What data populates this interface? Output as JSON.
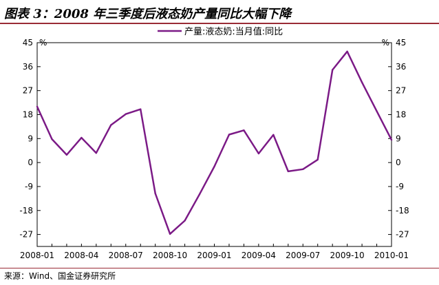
{
  "title": "图表 3：2008 年三季度后液态奶产量同比大幅下降",
  "source": "来源：Wind、国金证券研究所",
  "chart_data": {
    "type": "line",
    "title": "",
    "y_unit_left": "%",
    "y_unit_right": "%",
    "ylim": [
      -31.5,
      45
    ],
    "yticks": [
      45,
      36,
      27,
      18,
      9,
      0,
      -9,
      -18,
      -27
    ],
    "ytick_labels": [
      "45",
      "36",
      "27",
      "18",
      "9",
      "0",
      "-9",
      "-18",
      "-27"
    ],
    "x": [
      "2008-01",
      "2008-02",
      "2008-03",
      "2008-04",
      "2008-05",
      "2008-06",
      "2008-07",
      "2008-08",
      "2008-09",
      "2008-10",
      "2008-11",
      "2008-12",
      "2009-01",
      "2009-02",
      "2009-03",
      "2009-04",
      "2009-05",
      "2009-06",
      "2009-07",
      "2009-08",
      "2009-09",
      "2009-10",
      "2009-11",
      "2009-12",
      "2010-01"
    ],
    "xtick_labels": [
      "2008-01",
      "2008-04",
      "2008-07",
      "2008-10",
      "2009-01",
      "2009-04",
      "2009-07",
      "2009-10",
      "2010-01"
    ],
    "legend_position": "top-center",
    "series": [
      {
        "name": "产量:液态奶:当月值:同比",
        "color": "#7b1a86",
        "values": [
          21,
          8.8,
          2.9,
          9.3,
          3.6,
          14.1,
          18.2,
          20,
          -11.6,
          -26.8,
          -21.8,
          -11.9,
          -1.5,
          10.5,
          12.1,
          3.4,
          10.4,
          -3.3,
          -2.5,
          1.1,
          34.8,
          41.7,
          30.1,
          19.3,
          8.5
        ]
      }
    ]
  }
}
